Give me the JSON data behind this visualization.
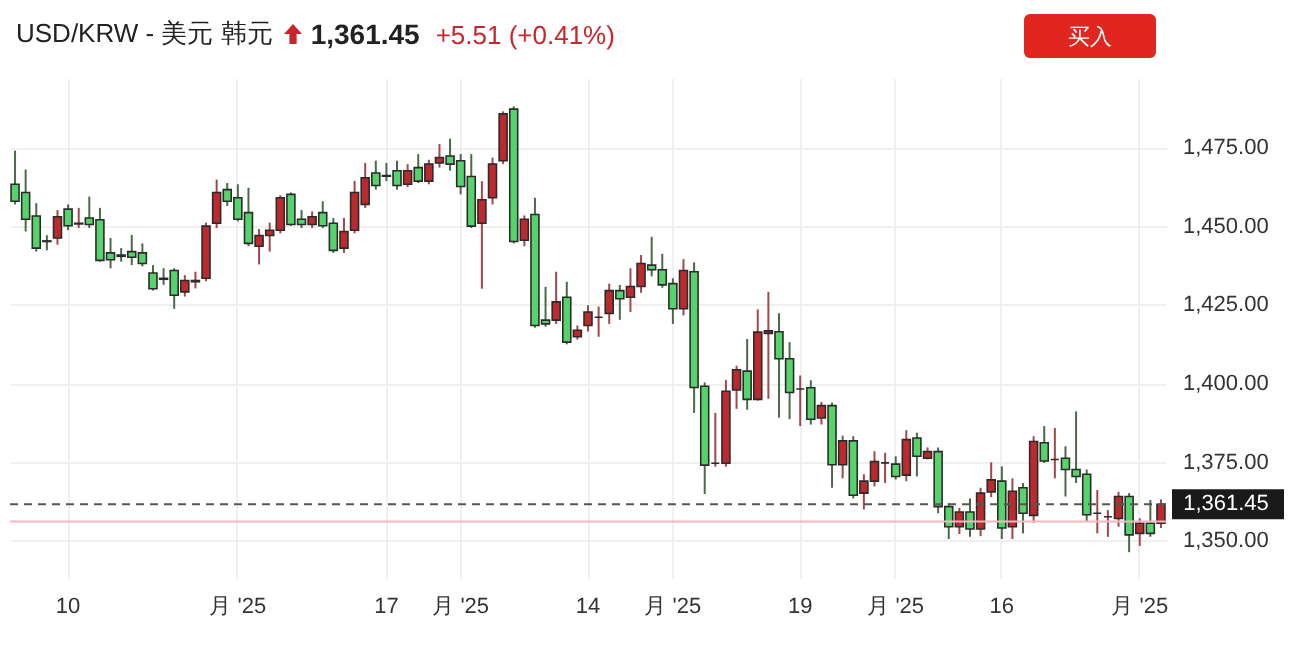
{
  "chart_data": {
    "type": "candlestick",
    "title": "USD/KRW - 美元 韩元",
    "annotations": [
      "1,361.45",
      "+5.51 (+0.41%)",
      "买入"
    ],
    "categories": [
      null,
      null,
      null,
      null,
      null,
      "10",
      null,
      null,
      null,
      null,
      null,
      null,
      null,
      null,
      null,
      null,
      null,
      null,
      null,
      null,
      null,
      "月 '25",
      null,
      null,
      null,
      null,
      null,
      null,
      null,
      null,
      null,
      null,
      null,
      null,
      null,
      "17",
      null,
      null,
      null,
      null,
      null,
      null,
      "月 '25",
      null,
      null,
      null,
      null,
      null,
      null,
      null,
      null,
      null,
      null,
      null,
      "14",
      null,
      null,
      null,
      null,
      null,
      null,
      null,
      "月 '25",
      null,
      null,
      null,
      null,
      null,
      null,
      null,
      null,
      null,
      null,
      null,
      "19",
      null,
      null,
      null,
      null,
      null,
      null,
      null,
      null,
      "月 '25",
      null,
      null,
      null,
      null,
      null,
      null,
      null,
      null,
      null,
      "16",
      null,
      null,
      null,
      null,
      null,
      null,
      null,
      null,
      null,
      null,
      null,
      null,
      "月 '25",
      null,
      null
    ],
    "ohlc": [
      [
        1463.2,
        1473.9,
        1456.8,
        1457.8
      ],
      [
        1460.6,
        1467.9,
        1448.2,
        1452.1
      ],
      [
        1453.1,
        1457.2,
        1441.8,
        1442.9
      ],
      [
        1445.2,
        1447.0,
        1442.2,
        1445.0
      ],
      [
        1446.1,
        1455.0,
        1444.0,
        1452.9
      ],
      [
        1455.3,
        1456.8,
        1448.6,
        1450.0
      ],
      [
        1450.6,
        1455.7,
        1449.3,
        1450.8
      ],
      [
        1452.5,
        1459.3,
        1449.3,
        1450.4
      ],
      [
        1451.9,
        1455.7,
        1438.6,
        1439.0
      ],
      [
        1441.4,
        1446.1,
        1436.5,
        1439.2
      ],
      [
        1440.7,
        1442.9,
        1438.6,
        1440.3
      ],
      [
        1441.8,
        1447.1,
        1437.5,
        1440.0
      ],
      [
        1441.4,
        1444.4,
        1437.1,
        1438.0
      ],
      [
        1435.0,
        1437.5,
        1429.4,
        1430.0
      ],
      [
        1433.3,
        1436.5,
        1431.2,
        1433.0
      ],
      [
        1435.8,
        1436.5,
        1423.6,
        1427.9
      ],
      [
        1429.0,
        1434.3,
        1427.5,
        1432.6
      ],
      [
        1432.2,
        1435.4,
        1430.1,
        1432.6
      ],
      [
        1433.3,
        1451.0,
        1432.4,
        1449.9
      ],
      [
        1450.8,
        1464.7,
        1449.3,
        1460.6
      ],
      [
        1461.5,
        1463.6,
        1456.3,
        1457.8
      ],
      [
        1458.9,
        1463.2,
        1451.4,
        1452.1
      ],
      [
        1454.2,
        1462.1,
        1443.5,
        1444.4
      ],
      [
        1443.5,
        1449.0,
        1437.7,
        1446.9
      ],
      [
        1446.9,
        1451.0,
        1441.8,
        1448.6
      ],
      [
        1448.6,
        1459.7,
        1447.6,
        1458.9
      ],
      [
        1460.0,
        1460.6,
        1450.0,
        1450.4
      ],
      [
        1452.1,
        1455.0,
        1449.3,
        1450.4
      ],
      [
        1450.4,
        1454.6,
        1449.3,
        1452.9
      ],
      [
        1454.2,
        1457.8,
        1449.3,
        1450.0
      ],
      [
        1450.8,
        1452.5,
        1441.4,
        1442.2
      ],
      [
        1442.9,
        1452.5,
        1441.4,
        1448.2
      ],
      [
        1448.6,
        1464.3,
        1447.6,
        1460.6
      ],
      [
        1456.8,
        1470.0,
        1455.7,
        1465.3
      ],
      [
        1466.8,
        1470.7,
        1461.5,
        1462.8
      ],
      [
        1466.0,
        1470.0,
        1464.2,
        1465.8
      ],
      [
        1467.5,
        1470.7,
        1461.5,
        1462.8
      ],
      [
        1463.2,
        1469.6,
        1462.3,
        1467.5
      ],
      [
        1468.5,
        1472.8,
        1463.6,
        1464.2
      ],
      [
        1464.2,
        1471.0,
        1463.2,
        1469.6
      ],
      [
        1470.0,
        1476.0,
        1468.5,
        1471.7
      ],
      [
        1472.2,
        1477.7,
        1467.5,
        1469.6
      ],
      [
        1470.7,
        1472.8,
        1460.0,
        1462.5
      ],
      [
        1465.7,
        1472.8,
        1449.3,
        1449.9
      ],
      [
        1450.8,
        1464.2,
        1430.0,
        1458.3
      ],
      [
        1458.9,
        1471.7,
        1456.8,
        1469.6
      ],
      [
        1470.7,
        1486.4,
        1469.6,
        1485.6
      ],
      [
        1487.1,
        1488.0,
        1444.4,
        1445.0
      ],
      [
        1445.4,
        1453.3,
        1443.5,
        1452.1
      ],
      [
        1453.6,
        1458.9,
        1417.6,
        1418.3
      ],
      [
        1420.0,
        1430.6,
        1417.9,
        1418.8
      ],
      [
        1420.0,
        1435.4,
        1418.8,
        1425.8
      ],
      [
        1427.3,
        1432.2,
        1412.3,
        1413.0
      ],
      [
        1414.7,
        1418.3,
        1413.8,
        1416.8
      ],
      [
        1418.3,
        1424.7,
        1416.4,
        1422.6
      ],
      [
        1420.9,
        1424.3,
        1414.7,
        1420.9
      ],
      [
        1422.1,
        1431.6,
        1418.8,
        1429.4
      ],
      [
        1429.4,
        1431.2,
        1420.1,
        1426.8
      ],
      [
        1427.3,
        1436.5,
        1422.6,
        1430.7
      ],
      [
        1430.7,
        1440.7,
        1428.7,
        1438.0
      ],
      [
        1437.5,
        1446.5,
        1433.9,
        1436.0
      ],
      [
        1436.0,
        1441.1,
        1430.3,
        1431.2
      ],
      [
        1431.6,
        1433.3,
        1418.8,
        1423.6
      ],
      [
        1423.6,
        1439.4,
        1421.5,
        1435.8
      ],
      [
        1435.4,
        1438.4,
        1390.5,
        1398.6
      ],
      [
        1399.0,
        1400.2,
        1364.7,
        1373.9
      ],
      [
        1374.5,
        1390.5,
        1373.4,
        1374.5
      ],
      [
        1374.5,
        1401.0,
        1373.4,
        1397.4
      ],
      [
        1397.8,
        1405.5,
        1391.8,
        1404.2
      ],
      [
        1403.8,
        1414.0,
        1391.5,
        1394.8
      ],
      [
        1394.8,
        1423.4,
        1394.4,
        1416.2
      ],
      [
        1415.8,
        1429.0,
        1395.0,
        1416.6
      ],
      [
        1416.3,
        1422.2,
        1389.0,
        1407.7
      ],
      [
        1407.7,
        1413.0,
        1388.5,
        1397.0
      ],
      [
        1398.1,
        1402.4,
        1386.3,
        1398.1
      ],
      [
        1398.5,
        1400.9,
        1386.8,
        1388.5
      ],
      [
        1388.9,
        1394.0,
        1386.8,
        1392.8
      ],
      [
        1392.8,
        1393.8,
        1366.7,
        1374.0
      ],
      [
        1374.0,
        1383.3,
        1369.7,
        1381.6
      ],
      [
        1381.6,
        1383.1,
        1363.3,
        1364.3
      ],
      [
        1365.0,
        1371.0,
        1359.8,
        1368.8
      ],
      [
        1368.8,
        1378.3,
        1367.1,
        1375.0
      ],
      [
        1374.6,
        1377.8,
        1368.2,
        1374.6
      ],
      [
        1374.2,
        1376.7,
        1369.3,
        1370.3
      ],
      [
        1370.7,
        1385.0,
        1368.8,
        1382.0
      ],
      [
        1382.5,
        1384.2,
        1370.3,
        1376.7
      ],
      [
        1376.1,
        1379.5,
        1375.7,
        1378.2
      ],
      [
        1378.2,
        1379.5,
        1358.6,
        1360.7
      ],
      [
        1360.7,
        1361.8,
        1350.4,
        1354.3
      ],
      [
        1354.3,
        1360.3,
        1352.0,
        1359.0
      ],
      [
        1359.0,
        1363.3,
        1351.1,
        1353.6
      ],
      [
        1353.6,
        1366.7,
        1351.3,
        1365.0
      ],
      [
        1365.4,
        1374.8,
        1363.7,
        1369.2
      ],
      [
        1368.8,
        1373.5,
        1350.4,
        1353.9
      ],
      [
        1354.3,
        1369.7,
        1350.4,
        1365.6
      ],
      [
        1366.7,
        1368.2,
        1352.2,
        1358.6
      ],
      [
        1357.9,
        1383.1,
        1355.6,
        1381.4
      ],
      [
        1381.0,
        1386.3,
        1374.6,
        1375.2
      ],
      [
        1375.7,
        1385.7,
        1369.7,
        1375.7
      ],
      [
        1376.1,
        1379.9,
        1363.9,
        1372.5
      ],
      [
        1372.5,
        1391.0,
        1368.2,
        1370.3
      ],
      [
        1371.0,
        1372.5,
        1356.0,
        1358.1
      ],
      [
        1358.6,
        1366.0,
        1352.2,
        1358.6
      ],
      [
        1357.5,
        1359.6,
        1351.1,
        1357.5
      ],
      [
        1356.9,
        1365.4,
        1354.3,
        1363.9
      ],
      [
        1363.9,
        1365.0,
        1346.2,
        1351.7
      ],
      [
        1352.2,
        1357.0,
        1348.2,
        1355.4
      ],
      [
        1355.4,
        1362.8,
        1351.1,
        1352.2
      ],
      [
        1355.4,
        1363.0,
        1353.9,
        1361.45
      ]
    ],
    "ylim": [
      1338,
      1497
    ],
    "yticks": [
      {
        "value": 1350,
        "label": "1,350.00"
      },
      {
        "value": 1375,
        "label": "1,375.00"
      },
      {
        "value": 1400,
        "label": "1,400.00"
      },
      {
        "value": 1425,
        "label": "1,425.00"
      },
      {
        "value": 1450,
        "label": "1,450.00"
      },
      {
        "value": 1475,
        "label": "1,475.00"
      }
    ],
    "ref_lines": [
      {
        "axis": "y",
        "value": 1361.45,
        "label": "1,361.45",
        "color": "#555555",
        "line_style": "dashed"
      },
      {
        "axis": "y",
        "value": 1355.94,
        "color": "#f2b8be",
        "line_style": "solid"
      }
    ],
    "grid": true
  }
}
